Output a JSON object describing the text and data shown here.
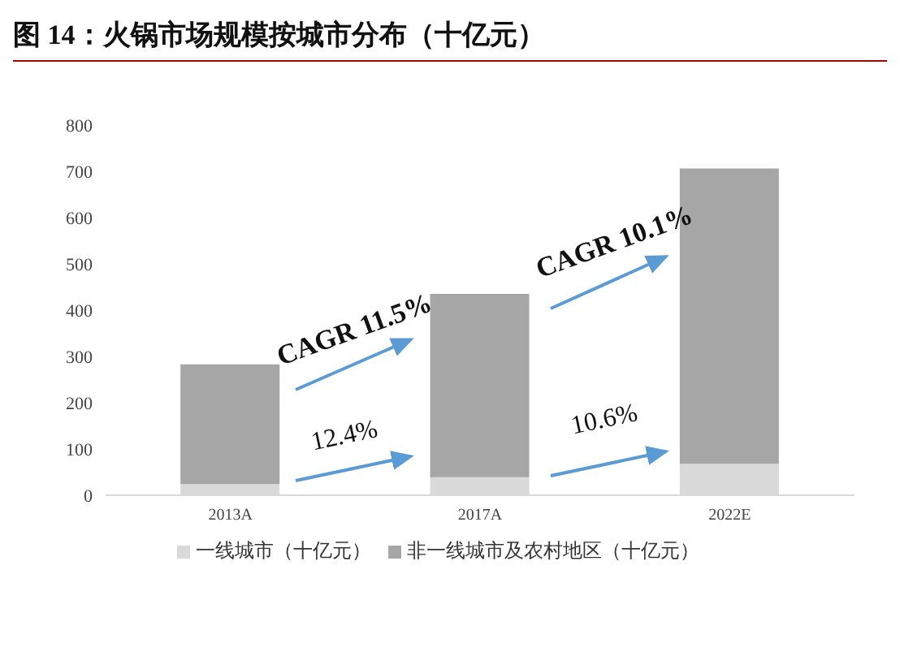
{
  "chart_data": {
    "type": "bar",
    "title": "图 14：火锅市场规模按城市分布（十亿元）",
    "categories": [
      "2013A",
      "2017A",
      "2022E"
    ],
    "stacked": true,
    "series": [
      {
        "name": "一线城市（十亿元）",
        "color": "#d9d9d9",
        "values": [
          24,
          39,
          68
        ]
      },
      {
        "name": "非一线城市及农村地区（十亿元）",
        "color": "#a6a6a6",
        "values": [
          259,
          396,
          638
        ]
      }
    ],
    "ylim": [
      0,
      800
    ],
    "yticks": [
      0,
      100,
      200,
      300,
      400,
      500,
      600,
      700,
      800
    ],
    "legend": "bottom",
    "annotations": [
      "CAGR 11.5%",
      "12.4%",
      "CAGR 10.1%",
      "10.6%"
    ]
  }
}
